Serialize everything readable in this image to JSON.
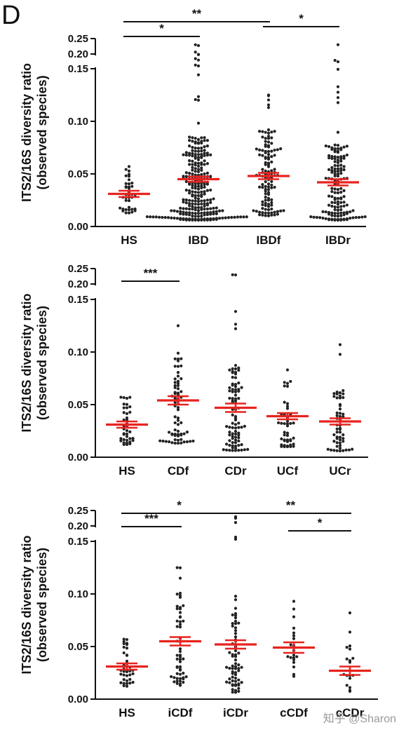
{
  "figure": {
    "panel_letter": "D",
    "watermark": "知乎 @Sharon"
  },
  "colors": {
    "dots": "#222222",
    "mean_sem": "#e8231f",
    "axes": "#111111"
  },
  "chart_data": [
    {
      "type": "scatter",
      "subtype": "dot-plot with mean ± SEM",
      "ylabel": "ITS2/16S diversity ratio (observed species)",
      "ylim": [
        0,
        0.25
      ],
      "y_axis_break": [
        0.15,
        0.2
      ],
      "yticks": [
        "0.00",
        "0.05",
        "0.10",
        "0.15",
        "0.20",
        "0.25"
      ],
      "categories": [
        "HS",
        "IBD",
        "IBDf",
        "IBDr"
      ],
      "groups": [
        {
          "name": "HS",
          "mean": 0.031,
          "sem": 0.003,
          "n_points": 38,
          "min": 0.012,
          "max": 0.057
        },
        {
          "name": "IBD",
          "mean": 0.045,
          "sem": 0.0025,
          "n_points": 270,
          "min": 0.006,
          "max": 0.23
        },
        {
          "name": "IBDf",
          "mean": 0.048,
          "sem": 0.003,
          "n_points": 120,
          "min": 0.01,
          "max": 0.125
        },
        {
          "name": "IBDr",
          "mean": 0.042,
          "sem": 0.003,
          "n_points": 150,
          "min": 0.006,
          "max": 0.23
        }
      ],
      "significance": [
        {
          "from": "HS",
          "to": "IBD",
          "label": "*"
        },
        {
          "from": "HS",
          "to": "IBDf",
          "label": "**"
        },
        {
          "from": "IBDf",
          "to": "IBDr",
          "label": "*"
        }
      ]
    },
    {
      "type": "scatter",
      "subtype": "dot-plot with mean ± SEM",
      "ylabel": "ITS2/16S diversity ratio (observed species)",
      "ylim": [
        0,
        0.25
      ],
      "y_axis_break": [
        0.15,
        0.2
      ],
      "yticks": [
        "0.00",
        "0.05",
        "0.10",
        "0.15",
        "0.20",
        "0.25"
      ],
      "categories": [
        "HS",
        "CDf",
        "CDr",
        "UCf",
        "UCr"
      ],
      "groups": [
        {
          "name": "HS",
          "mean": 0.031,
          "sem": 0.003,
          "n_points": 38,
          "min": 0.012,
          "max": 0.057
        },
        {
          "name": "CDf",
          "mean": 0.054,
          "sem": 0.004,
          "n_points": 70,
          "min": 0.013,
          "max": 0.125
        },
        {
          "name": "CDr",
          "mean": 0.047,
          "sem": 0.004,
          "n_points": 90,
          "min": 0.006,
          "max": 0.23
        },
        {
          "name": "UCf",
          "mean": 0.039,
          "sem": 0.003,
          "n_points": 45,
          "min": 0.01,
          "max": 0.083
        },
        {
          "name": "UCr",
          "mean": 0.034,
          "sem": 0.003,
          "n_points": 55,
          "min": 0.006,
          "max": 0.107
        }
      ],
      "significance": [
        {
          "from": "HS",
          "to": "CDf",
          "label": "***"
        }
      ]
    },
    {
      "type": "scatter",
      "subtype": "dot-plot with mean ± SEM",
      "ylabel": "ITS2/16S diversity ratio (observed species)",
      "ylim": [
        0,
        0.25
      ],
      "y_axis_break": [
        0.15,
        0.2
      ],
      "yticks": [
        "0.00",
        "0.05",
        "0.10",
        "0.15",
        "0.20",
        "0.25"
      ],
      "categories": [
        "HS",
        "iCDf",
        "iCDr",
        "cCDf",
        "cCDr"
      ],
      "groups": [
        {
          "name": "HS",
          "mean": 0.031,
          "sem": 0.003,
          "n_points": 38,
          "min": 0.012,
          "max": 0.057
        },
        {
          "name": "iCDf",
          "mean": 0.055,
          "sem": 0.004,
          "n_points": 55,
          "min": 0.013,
          "max": 0.125
        },
        {
          "name": "iCDr",
          "mean": 0.052,
          "sem": 0.004,
          "n_points": 70,
          "min": 0.006,
          "max": 0.23
        },
        {
          "name": "cCDf",
          "mean": 0.049,
          "sem": 0.005,
          "n_points": 20,
          "min": 0.019,
          "max": 0.093
        },
        {
          "name": "cCDr",
          "mean": 0.027,
          "sem": 0.004,
          "n_points": 18,
          "min": 0.007,
          "max": 0.082
        }
      ],
      "significance": [
        {
          "from": "HS",
          "to": "iCDf",
          "label": "***"
        },
        {
          "from": "HS",
          "to": "iCDr",
          "label": "*"
        },
        {
          "from": "iCDr",
          "to": "cCDr",
          "label": "**"
        },
        {
          "from": "cCDf",
          "to": "cCDr",
          "label": "*"
        }
      ]
    }
  ]
}
